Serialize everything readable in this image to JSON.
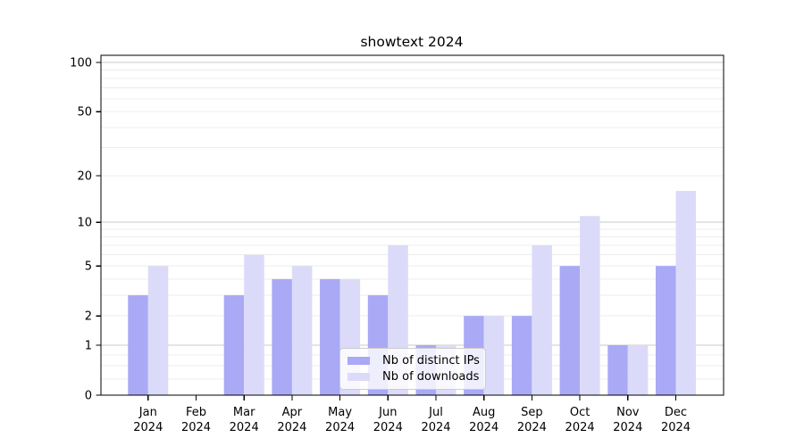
{
  "chart_data": {
    "type": "bar",
    "title": "showtext 2024",
    "categories": [
      "Jan 2024",
      "Feb 2024",
      "Mar 2024",
      "Apr 2024",
      "May 2024",
      "Jun 2024",
      "Jul 2024",
      "Aug 2024",
      "Sep 2024",
      "Oct 2024",
      "Nov 2024",
      "Dec 2024"
    ],
    "series": [
      {
        "name": "Nb of distinct IPs",
        "color": "#a9a9f5",
        "values": [
          3,
          0,
          3,
          4,
          4,
          3,
          1,
          2,
          2,
          5,
          1,
          5
        ]
      },
      {
        "name": "Nb of downloads",
        "color": "#dbdbf9",
        "values": [
          5,
          0,
          6,
          5,
          4,
          7,
          1,
          2,
          7,
          11,
          1,
          16
        ]
      }
    ],
    "xlabel": "",
    "ylabel": "",
    "yscale": "log1p",
    "yticks": [
      0,
      1,
      2,
      5,
      10,
      20,
      50,
      100
    ],
    "minor_yticks": [
      0.25,
      0.5,
      0.75,
      2,
      3,
      4,
      5,
      6,
      7,
      8,
      9,
      20,
      30,
      40,
      50,
      60,
      70,
      80,
      90
    ],
    "major_grid_values": [
      1,
      10,
      100
    ],
    "ylim": [
      0,
      110
    ],
    "grid": true,
    "legend_position": "lower center",
    "colors": {
      "major_grid": "#c9c9c9",
      "minor_grid": "#ececec",
      "axis": "#000000",
      "text": "#000000",
      "background": "#ffffff"
    }
  }
}
